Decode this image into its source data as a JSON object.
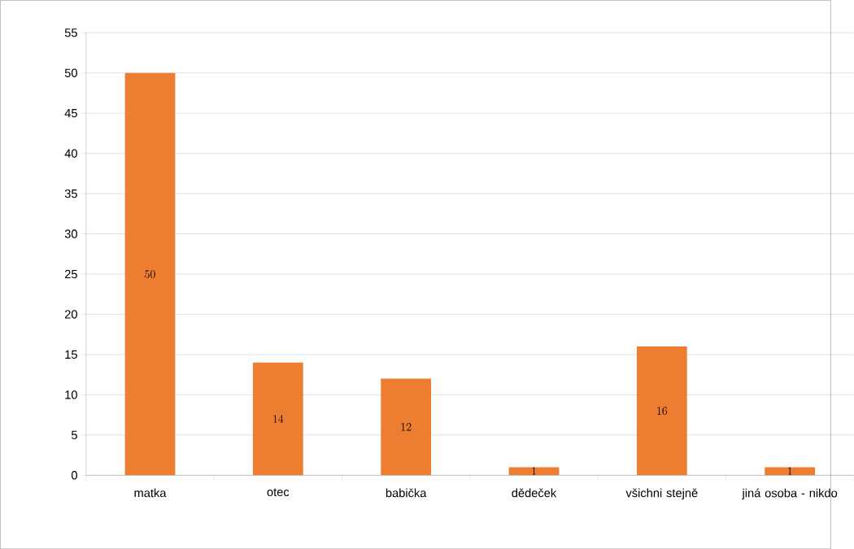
{
  "chart_data": {
    "type": "bar",
    "categories": [
      "matka",
      "otec",
      "babička",
      "dědeček",
      "všichni stejně",
      "jiná osoba - nikdo"
    ],
    "values": [
      50,
      14,
      12,
      1,
      16,
      1
    ],
    "color": "#ed7d31",
    "ylim": [
      0,
      55
    ],
    "yticks": [
      0,
      5,
      10,
      15,
      20,
      25,
      30,
      35,
      40,
      45,
      50,
      55
    ],
    "grid": "y",
    "data_labels": true
  }
}
